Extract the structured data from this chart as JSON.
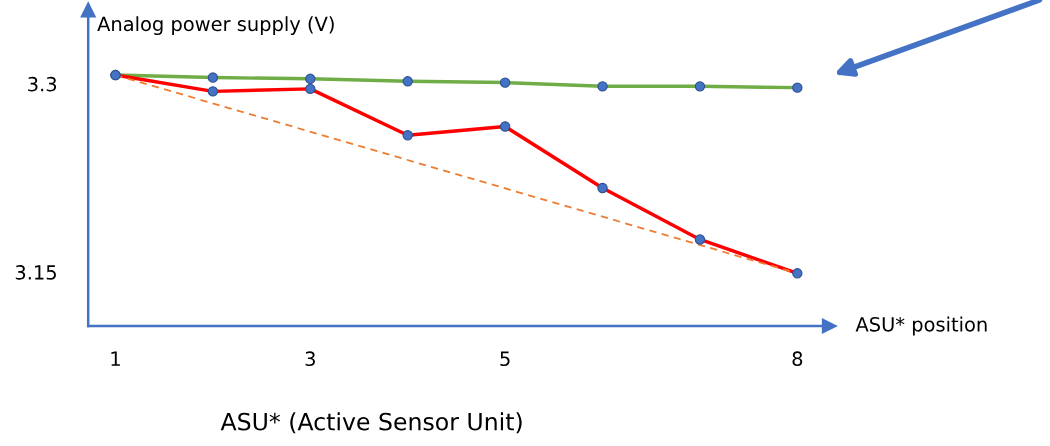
{
  "chart_data": {
    "type": "line",
    "ylabel": "Analog power supply (V)",
    "xlabel": "ASU* position",
    "x": [
      1,
      2,
      3,
      4,
      5,
      6,
      7,
      8
    ],
    "series": [
      {
        "color": "#70ad47",
        "colors": [
          "#4472c4",
          "#4472c4",
          "#4472c4",
          "#4472c4",
          "#4472c4",
          "#4472c4",
          "#4472c4",
          "#4472c4"
        ],
        "marker": "circle",
        "values": [
          3.307,
          3.305,
          3.304,
          3.302,
          3.301,
          3.298,
          3.298,
          3.297
        ]
      },
      {
        "color": "#ff0000",
        "colors": [
          "#4472c4",
          "#4472c4",
          "#4472c4",
          "#4472c4",
          "#4472c4",
          "#4472c4",
          "#4472c4",
          "#4472c4"
        ],
        "marker": "circle",
        "values": [
          3.307,
          3.294,
          3.296,
          3.259,
          3.266,
          3.217,
          3.176,
          3.149
        ]
      },
      {
        "color": "#ed7d31",
        "x": [
          1,
          8
        ],
        "marker": "none",
        "line_style": "dashed",
        "values": [
          3.307,
          3.149
        ]
      }
    ],
    "xlim": [
      0.72,
      8.33
    ],
    "ylim": [
      3.107,
      3.359
    ],
    "xticks": [
      1,
      3,
      5,
      8
    ],
    "yticks": [
      3.15,
      3.3
    ],
    "grid": false,
    "legend": false,
    "annotations": [
      "ASU* (Active Sensor Unit)"
    ]
  }
}
